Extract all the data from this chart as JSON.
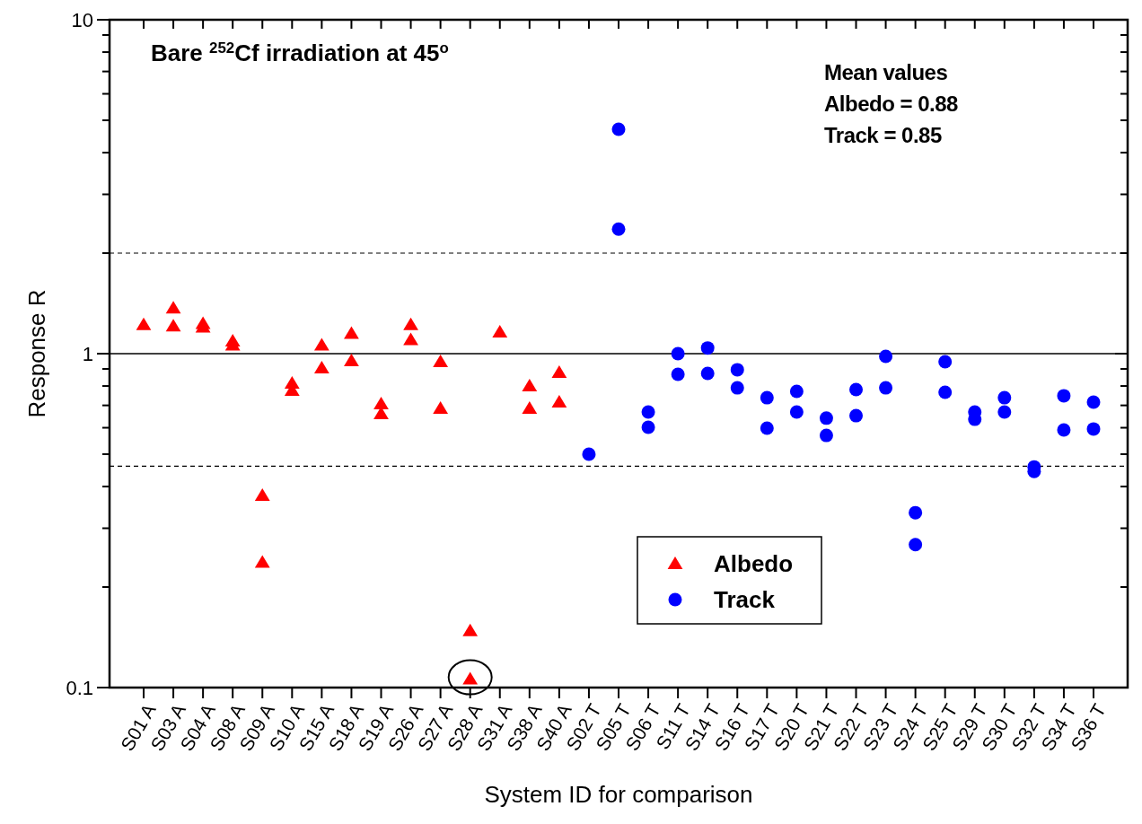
{
  "chart_data": {
    "type": "scatter",
    "title": "Bare $^{252}$Cf irradiation at 45$^{o}$",
    "xlabel": "System ID for comparison",
    "ylabel": "Response R",
    "categories": [
      "S01 A",
      "S03 A",
      "S04 A",
      "S08 A",
      "S09 A",
      "S10 A",
      "S15 A",
      "S18 A",
      "S19 A",
      "S26 A",
      "S27 A",
      "S28 A",
      "S31 A",
      "S38 A",
      "S40 A",
      "S02 T",
      "S05 T",
      "S06 T",
      "S11 T",
      "S14 T",
      "S16 T",
      "S17 T",
      "S20 T",
      "S21 T",
      "S22 T",
      "S23 T",
      "S24 T",
      "S25 T",
      "S29 T",
      "S30 T",
      "S32 T",
      "S34 T",
      "S36 T"
    ],
    "series": [
      {
        "name": "Albedo",
        "color": "#ff0000",
        "marker": "triangle",
        "x": [
          "S01 A",
          "S03 A",
          "S03 A",
          "S04 A",
          "S04 A",
          "S08 A",
          "S08 A",
          "S09 A",
          "S09 A",
          "S10 A",
          "S10 A",
          "S15 A",
          "S15 A",
          "S18 A",
          "S18 A",
          "S19 A",
          "S19 A",
          "S26 A",
          "S26 A",
          "S27 A",
          "S27 A",
          "S28 A",
          "S28 A",
          "S31 A",
          "S38 A",
          "S38 A",
          "S40 A",
          "S40 A"
        ],
        "values": [
          1.22,
          1.37,
          1.21,
          1.23,
          1.2,
          1.09,
          1.06,
          0.376,
          0.237,
          0.815,
          0.776,
          1.06,
          0.906,
          1.15,
          0.952,
          0.707,
          0.661,
          1.22,
          1.1,
          0.946,
          0.686,
          0.148,
          0.106,
          1.16,
          0.8,
          0.686,
          0.878,
          0.716
        ]
      },
      {
        "name": "Track",
        "color": "#0000ff",
        "marker": "circle",
        "x": [
          "S02 T",
          "S05 T",
          "S05 T",
          "S06 T",
          "S06 T",
          "S11 T",
          "S11 T",
          "S14 T",
          "S14 T",
          "S16 T",
          "S16 T",
          "S17 T",
          "S17 T",
          "S20 T",
          "S20 T",
          "S21 T",
          "S21 T",
          "S22 T",
          "S22 T",
          "S23 T",
          "S23 T",
          "S24 T",
          "S24 T",
          "S25 T",
          "S25 T",
          "S29 T",
          "S29 T",
          "S30 T",
          "S30 T",
          "S32 T",
          "S32 T",
          "S34 T",
          "S34 T",
          "S36 T",
          "S36 T"
        ],
        "values": [
          0.5,
          4.7,
          2.36,
          0.669,
          0.602,
          1.0,
          0.867,
          1.04,
          0.873,
          0.895,
          0.79,
          0.738,
          0.598,
          0.771,
          0.669,
          0.641,
          0.569,
          0.781,
          0.652,
          0.982,
          0.79,
          0.334,
          0.268,
          0.946,
          0.766,
          0.669,
          0.636,
          0.738,
          0.669,
          0.458,
          0.444,
          0.748,
          0.591,
          0.716,
          0.595
        ]
      }
    ],
    "log": "y",
    "ylim": [
      0.1,
      10
    ],
    "yticks": [
      0.1,
      {
        "value": 0.2,
        "label": null
      },
      {
        "value": 0.3,
        "label": null
      },
      {
        "value": 0.4,
        "label": null
      },
      {
        "value": 0.5,
        "label": null
      },
      {
        "value": 0.6,
        "label": null
      },
      {
        "value": 0.7,
        "label": null
      },
      {
        "value": 0.8,
        "label": null
      },
      {
        "value": 0.9,
        "label": null
      },
      1,
      {
        "value": 2,
        "label": null
      },
      {
        "value": 3,
        "label": null
      },
      {
        "value": 4,
        "label": null
      },
      {
        "value": 5,
        "label": null
      },
      {
        "value": 6,
        "label": null
      },
      {
        "value": 7,
        "label": null
      },
      {
        "value": 8,
        "label": null
      },
      {
        "value": 9,
        "label": null
      },
      10
    ],
    "ref_lines": [
      {
        "axis": "y",
        "value": 1,
        "color": "#000000",
        "line_style": "solid"
      },
      {
        "axis": "y",
        "value": 2,
        "color": "#000000",
        "line_style": "dashed"
      },
      {
        "axis": "y",
        "value": 0.46,
        "color": "#000000",
        "line_style": "dashed"
      }
    ],
    "annotations": [
      "Mean values",
      "Albedo = 0.88",
      "Track = 0.85"
    ],
    "legend": "bottom",
    "grid": false
  }
}
